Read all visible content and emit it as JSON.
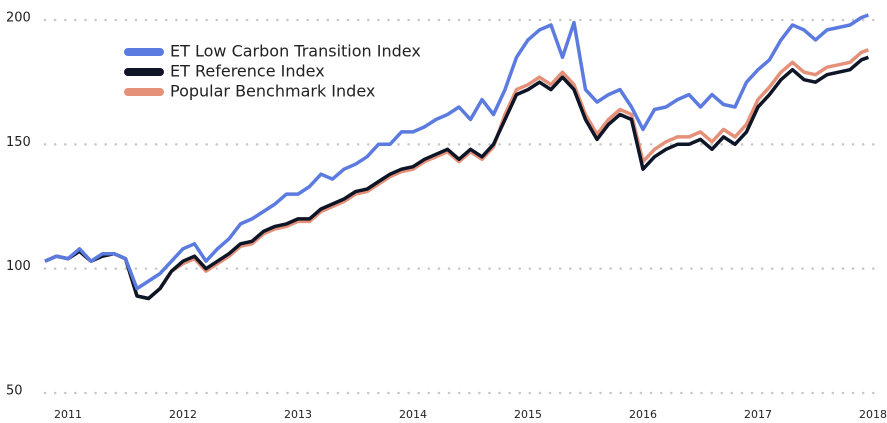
{
  "chart_data": {
    "type": "line",
    "x": [
      2010.8,
      2010.9,
      2011.0,
      2011.1,
      2011.2,
      2011.3,
      2011.4,
      2011.5,
      2011.6,
      2011.7,
      2011.8,
      2011.9,
      2012.0,
      2012.1,
      2012.2,
      2012.3,
      2012.4,
      2012.5,
      2012.6,
      2012.7,
      2012.8,
      2012.9,
      2013.0,
      2013.1,
      2013.2,
      2013.3,
      2013.4,
      2013.5,
      2013.6,
      2013.7,
      2013.8,
      2013.9,
      2014.0,
      2014.1,
      2014.2,
      2014.3,
      2014.4,
      2014.5,
      2014.6,
      2014.7,
      2014.8,
      2014.9,
      2015.0,
      2015.1,
      2015.2,
      2015.3,
      2015.4,
      2015.5,
      2015.6,
      2015.7,
      2015.8,
      2015.9,
      2016.0,
      2016.1,
      2016.2,
      2016.3,
      2016.4,
      2016.5,
      2016.6,
      2016.7,
      2016.8,
      2016.9,
      2017.0,
      2017.1,
      2017.2,
      2017.3,
      2017.4,
      2017.5,
      2017.6,
      2017.7,
      2017.8,
      2017.9,
      2017.96
    ],
    "series": [
      {
        "name": "ET Low Carbon Transition Index",
        "color": "#5b7be0",
        "values": [
          103,
          105,
          104,
          108,
          103,
          106,
          106,
          104,
          92,
          95,
          98,
          103,
          108,
          110,
          103,
          108,
          112,
          118,
          120,
          123,
          126,
          130,
          130,
          133,
          138,
          136,
          140,
          142,
          145,
          150,
          150,
          155,
          155,
          157,
          160,
          162,
          165,
          160,
          168,
          162,
          172,
          185,
          192,
          196,
          198,
          185,
          199,
          172,
          167,
          170,
          172,
          165,
          156,
          164,
          165,
          168,
          170,
          165,
          170,
          166,
          165,
          175,
          180,
          184,
          192,
          198,
          196,
          192,
          196,
          197,
          198,
          201,
          202
        ]
      },
      {
        "name": "ET Reference Index",
        "color": "#0d1526",
        "values": [
          103,
          105,
          104,
          107,
          103,
          105,
          106,
          104,
          89,
          88,
          92,
          99,
          103,
          105,
          100,
          103,
          106,
          110,
          111,
          115,
          117,
          118,
          120,
          120,
          124,
          126,
          128,
          131,
          132,
          135,
          138,
          140,
          141,
          144,
          146,
          148,
          144,
          148,
          145,
          150,
          160,
          170,
          172,
          175,
          172,
          177,
          172,
          160,
          152,
          158,
          162,
          160,
          140,
          145,
          148,
          150,
          150,
          152,
          148,
          153,
          150,
          155,
          165,
          170,
          176,
          180,
          176,
          175,
          178,
          179,
          180,
          184,
          185
        ]
      },
      {
        "name": "Popular Benchmark Index",
        "color": "#e5917a",
        "values": [
          103,
          105,
          104,
          107,
          103,
          105,
          106,
          104,
          89,
          88,
          92,
          99,
          102,
          104,
          99,
          102,
          105,
          109,
          110,
          114,
          116,
          117,
          119,
          119,
          123,
          125,
          127,
          130,
          131,
          134,
          137,
          139,
          140,
          143,
          145,
          147,
          143,
          147,
          144,
          149,
          162,
          172,
          174,
          177,
          174,
          179,
          174,
          162,
          154,
          160,
          164,
          162,
          143,
          148,
          151,
          153,
          153,
          155,
          151,
          156,
          153,
          158,
          168,
          173,
          179,
          183,
          179,
          178,
          181,
          182,
          183,
          187,
          188
        ]
      }
    ],
    "xlim": [
      2010.8,
      2018
    ],
    "xticks": [
      2011,
      2012,
      2013,
      2014,
      2015,
      2016,
      2017,
      2018
    ],
    "ylim": [
      50,
      200
    ],
    "yticks": [
      50,
      100,
      150,
      200
    ],
    "grid": true,
    "legend": "top-left"
  }
}
